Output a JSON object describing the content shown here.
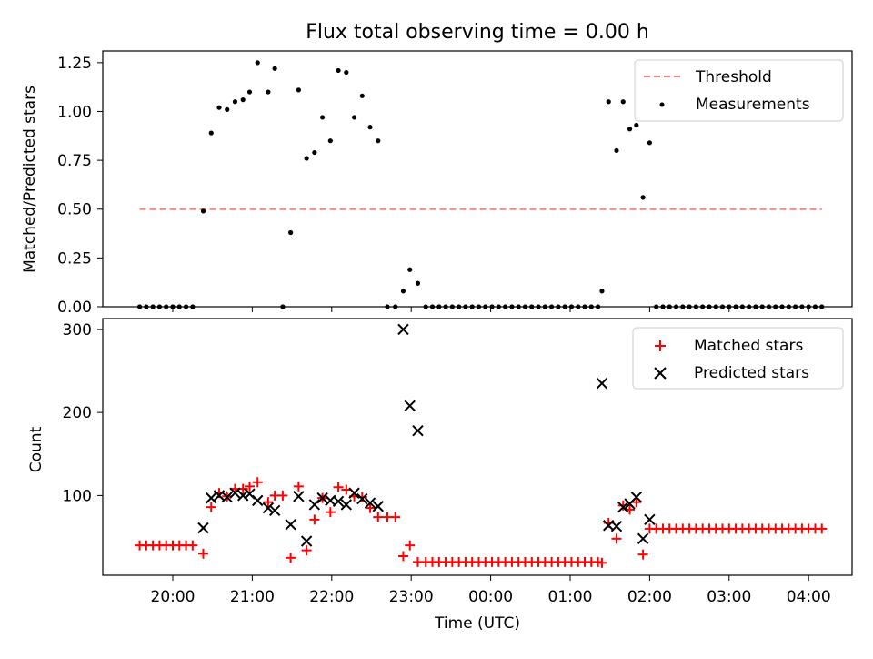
{
  "figure": {
    "title": "Flux total observing time = 0.00 h"
  },
  "chart_data": [
    {
      "type": "scatter",
      "title": "Flux total observing time = 0.00 h",
      "xlabel": "",
      "ylabel": "Matched/Predicted stars",
      "yticks": [
        "0.00",
        "0.25",
        "0.50",
        "0.75",
        "1.00",
        "1.25"
      ],
      "ylim": [
        0,
        1.31
      ],
      "grid": false,
      "legend_position": "upper right",
      "legend": [
        "Threshold",
        "Measurements"
      ],
      "threshold": {
        "name": "Threshold",
        "value": 0.5,
        "x_start": "19:35",
        "x_end": "04:10",
        "color": "#ff7f7f",
        "style": "dashed"
      },
      "series": [
        {
          "name": "Measurements",
          "marker": "dot",
          "color": "#000000",
          "points": [
            [
              "19:35",
              0
            ],
            [
              "19:40",
              0
            ],
            [
              "19:45",
              0
            ],
            [
              "19:50",
              0
            ],
            [
              "19:55",
              0
            ],
            [
              "20:00",
              0
            ],
            [
              "20:05",
              0
            ],
            [
              "20:10",
              0
            ],
            [
              "20:15",
              0
            ],
            [
              "20:23",
              0.49
            ],
            [
              "20:29",
              0.89
            ],
            [
              "20:35",
              1.02
            ],
            [
              "20:41",
              1.01
            ],
            [
              "20:47",
              1.05
            ],
            [
              "20:53",
              1.06
            ],
            [
              "20:58",
              1.1
            ],
            [
              "21:04",
              1.25
            ],
            [
              "21:12",
              1.1
            ],
            [
              "21:17",
              1.22
            ],
            [
              "21:23",
              0
            ],
            [
              "21:29",
              0.38
            ],
            [
              "21:35",
              1.11
            ],
            [
              "21:41",
              0.76
            ],
            [
              "21:47",
              0.79
            ],
            [
              "21:53",
              0.97
            ],
            [
              "21:59",
              0.85
            ],
            [
              "22:05",
              1.21
            ],
            [
              "22:11",
              1.2
            ],
            [
              "22:17",
              0.97
            ],
            [
              "22:23",
              1.08
            ],
            [
              "22:29",
              0.92
            ],
            [
              "22:35",
              0.85
            ],
            [
              "22:42",
              0
            ],
            [
              "22:48",
              0
            ],
            [
              "22:54",
              0.08
            ],
            [
              "22:59",
              0.19
            ],
            [
              "23:05",
              0.12
            ],
            [
              "23:11",
              0
            ],
            [
              "23:16",
              0
            ],
            [
              "23:21",
              0
            ],
            [
              "23:26",
              0
            ],
            [
              "23:31",
              0
            ],
            [
              "23:36",
              0
            ],
            [
              "23:41",
              0
            ],
            [
              "23:46",
              0
            ],
            [
              "23:51",
              0
            ],
            [
              "23:56",
              0
            ],
            [
              "00:01",
              0
            ],
            [
              "00:06",
              0
            ],
            [
              "00:11",
              0
            ],
            [
              "00:16",
              0
            ],
            [
              "00:21",
              0
            ],
            [
              "00:26",
              0
            ],
            [
              "00:31",
              0
            ],
            [
              "00:36",
              0
            ],
            [
              "00:41",
              0
            ],
            [
              "00:46",
              0
            ],
            [
              "00:51",
              0
            ],
            [
              "00:56",
              0
            ],
            [
              "01:01",
              0
            ],
            [
              "01:06",
              0
            ],
            [
              "01:11",
              0
            ],
            [
              "01:16",
              0
            ],
            [
              "01:21",
              0
            ],
            [
              "01:24",
              0.08
            ],
            [
              "01:29",
              1.05
            ],
            [
              "01:35",
              0.8
            ],
            [
              "01:40",
              1.05
            ],
            [
              "01:45",
              0.91
            ],
            [
              "01:50",
              0.93
            ],
            [
              "01:55",
              0.56
            ],
            [
              "02:00",
              0.84
            ],
            [
              "02:05",
              0
            ],
            [
              "02:10",
              0
            ],
            [
              "02:15",
              0
            ],
            [
              "02:20",
              0
            ],
            [
              "02:25",
              0
            ],
            [
              "02:30",
              0
            ],
            [
              "02:35",
              0
            ],
            [
              "02:40",
              0
            ],
            [
              "02:45",
              0
            ],
            [
              "02:50",
              0
            ],
            [
              "02:55",
              0
            ],
            [
              "03:00",
              0
            ],
            [
              "03:05",
              0
            ],
            [
              "03:10",
              0
            ],
            [
              "03:15",
              0
            ],
            [
              "03:20",
              0
            ],
            [
              "03:25",
              0
            ],
            [
              "03:30",
              0
            ],
            [
              "03:35",
              0
            ],
            [
              "03:40",
              0
            ],
            [
              "03:45",
              0
            ],
            [
              "03:50",
              0
            ],
            [
              "03:55",
              0
            ],
            [
              "04:00",
              0
            ],
            [
              "04:05",
              0
            ],
            [
              "04:10",
              0
            ]
          ]
        }
      ]
    },
    {
      "type": "scatter",
      "title": "",
      "xlabel": "Time (UTC)",
      "ylabel": "Count",
      "yticks": [
        "100",
        "200",
        "300"
      ],
      "xticks": [
        "20:00",
        "21:00",
        "22:00",
        "23:00",
        "00:00",
        "01:00",
        "02:00",
        "03:00",
        "04:00"
      ],
      "ylim": [
        4,
        313
      ],
      "grid": false,
      "legend_position": "upper right",
      "legend": [
        "Matched stars",
        "Predicted stars"
      ],
      "series": [
        {
          "name": "Matched stars",
          "marker": "plus",
          "color": "#ff0000",
          "points": [
            [
              "19:35",
              40
            ],
            [
              "19:40",
              40
            ],
            [
              "19:45",
              40
            ],
            [
              "19:50",
              40
            ],
            [
              "19:55",
              40
            ],
            [
              "20:00",
              40
            ],
            [
              "20:05",
              40
            ],
            [
              "20:10",
              40
            ],
            [
              "20:15",
              40
            ],
            [
              "20:23",
              30
            ],
            [
              "20:29",
              86
            ],
            [
              "20:35",
              103
            ],
            [
              "20:41",
              99
            ],
            [
              "20:47",
              108
            ],
            [
              "20:53",
              108
            ],
            [
              "20:58",
              111
            ],
            [
              "21:04",
              116
            ],
            [
              "21:12",
              92
            ],
            [
              "21:17",
              100
            ],
            [
              "21:23",
              100
            ],
            [
              "21:29",
              25
            ],
            [
              "21:35",
              111
            ],
            [
              "21:41",
              34
            ],
            [
              "21:47",
              71
            ],
            [
              "21:53",
              97
            ],
            [
              "21:59",
              80
            ],
            [
              "22:05",
              110
            ],
            [
              "22:11",
              107
            ],
            [
              "22:17",
              99
            ],
            [
              "22:23",
              98
            ],
            [
              "22:29",
              85
            ],
            [
              "22:35",
              74
            ],
            [
              "22:42",
              74
            ],
            [
              "22:48",
              74
            ],
            [
              "22:54",
              27
            ],
            [
              "22:59",
              40
            ],
            [
              "23:05",
              20
            ],
            [
              "23:11",
              20
            ],
            [
              "23:16",
              20
            ],
            [
              "23:21",
              20
            ],
            [
              "23:26",
              20
            ],
            [
              "23:31",
              20
            ],
            [
              "23:36",
              20
            ],
            [
              "23:41",
              20
            ],
            [
              "23:46",
              20
            ],
            [
              "23:51",
              20
            ],
            [
              "23:56",
              20
            ],
            [
              "00:01",
              20
            ],
            [
              "00:06",
              20
            ],
            [
              "00:11",
              20
            ],
            [
              "00:16",
              20
            ],
            [
              "00:21",
              20
            ],
            [
              "00:26",
              20
            ],
            [
              "00:31",
              20
            ],
            [
              "00:36",
              20
            ],
            [
              "00:41",
              20
            ],
            [
              "00:46",
              20
            ],
            [
              "00:51",
              20
            ],
            [
              "00:56",
              20
            ],
            [
              "01:01",
              20
            ],
            [
              "01:06",
              20
            ],
            [
              "01:11",
              20
            ],
            [
              "01:16",
              20
            ],
            [
              "01:21",
              20
            ],
            [
              "01:24",
              19
            ],
            [
              "01:29",
              67
            ],
            [
              "01:35",
              48
            ],
            [
              "01:40",
              88
            ],
            [
              "01:45",
              83
            ],
            [
              "01:50",
              92
            ],
            [
              "01:55",
              29
            ],
            [
              "02:00",
              60
            ],
            [
              "02:05",
              60
            ],
            [
              "02:10",
              60
            ],
            [
              "02:15",
              60
            ],
            [
              "02:20",
              60
            ],
            [
              "02:25",
              60
            ],
            [
              "02:30",
              60
            ],
            [
              "02:35",
              60
            ],
            [
              "02:40",
              60
            ],
            [
              "02:45",
              60
            ],
            [
              "02:50",
              60
            ],
            [
              "02:55",
              60
            ],
            [
              "03:00",
              60
            ],
            [
              "03:05",
              60
            ],
            [
              "03:10",
              60
            ],
            [
              "03:15",
              60
            ],
            [
              "03:20",
              60
            ],
            [
              "03:25",
              60
            ],
            [
              "03:30",
              60
            ],
            [
              "03:35",
              60
            ],
            [
              "03:40",
              60
            ],
            [
              "03:45",
              60
            ],
            [
              "03:50",
              60
            ],
            [
              "03:55",
              60
            ],
            [
              "04:00",
              60
            ],
            [
              "04:05",
              60
            ],
            [
              "04:10",
              60
            ]
          ]
        },
        {
          "name": "Predicted stars",
          "marker": "x",
          "color": "#000000",
          "points": [
            [
              "20:23",
              61
            ],
            [
              "20:29",
              97
            ],
            [
              "20:35",
              100
            ],
            [
              "20:41",
              98
            ],
            [
              "20:47",
              103
            ],
            [
              "20:53",
              100
            ],
            [
              "20:58",
              102
            ],
            [
              "21:04",
              94
            ],
            [
              "21:12",
              85
            ],
            [
              "21:17",
              82
            ],
            [
              "21:29",
              65
            ],
            [
              "21:35",
              99
            ],
            [
              "21:41",
              45
            ],
            [
              "21:47",
              89
            ],
            [
              "21:53",
              97
            ],
            [
              "21:59",
              94
            ],
            [
              "22:05",
              93
            ],
            [
              "22:11",
              89
            ],
            [
              "22:17",
              103
            ],
            [
              "22:23",
              96
            ],
            [
              "22:29",
              91
            ],
            [
              "22:35",
              87
            ],
            [
              "22:54",
              300
            ],
            [
              "22:59",
              208
            ],
            [
              "23:05",
              178
            ],
            [
              "01:24",
              235
            ],
            [
              "01:29",
              64
            ],
            [
              "01:35",
              63
            ],
            [
              "01:40",
              86
            ],
            [
              "01:45",
              90
            ],
            [
              "01:50",
              98
            ],
            [
              "01:55",
              48
            ],
            [
              "02:00",
              71
            ]
          ]
        }
      ]
    }
  ]
}
